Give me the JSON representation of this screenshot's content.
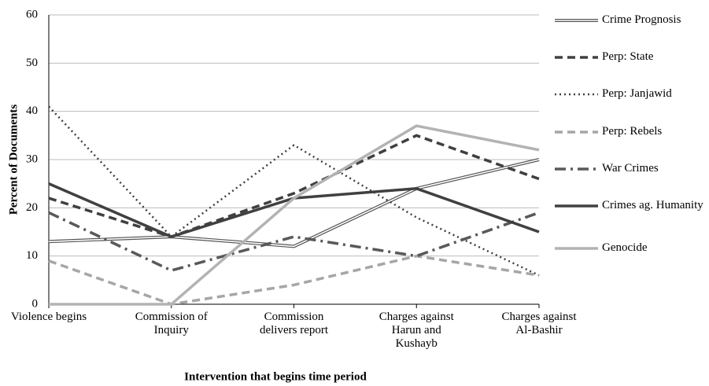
{
  "chart_data": {
    "type": "line",
    "y_label": "Percent of Documents",
    "x_label": "Intervention that begins time period",
    "categories": [
      "Violence begins",
      "Commission of Inquiry",
      "Commission delivers report",
      "Charges against Harun and Kushayb",
      "Charges against Al-Bashir"
    ],
    "ylim": [
      0,
      60
    ],
    "yticks": [
      0,
      10,
      20,
      30,
      40,
      50,
      60
    ],
    "grid": true,
    "legend": "right",
    "series": [
      {
        "name": "Crime Prognosis",
        "color": "#555555",
        "line_style": "double",
        "values": [
          13,
          14,
          12,
          24,
          30
        ]
      },
      {
        "name": "Perp: State",
        "color": "#404040",
        "line_style": "dashed",
        "values": [
          22,
          14,
          23,
          35,
          26
        ]
      },
      {
        "name": "Perp: Janjawid",
        "color": "#404040",
        "line_style": "dotted",
        "values": [
          41,
          14,
          33,
          18,
          6
        ]
      },
      {
        "name": "Perp: Rebels",
        "color": "#a6a6a6",
        "line_style": "dashed",
        "values": [
          9,
          0,
          4,
          10,
          6
        ]
      },
      {
        "name": "War Crimes",
        "color": "#595959",
        "line_style": "dashdot",
        "values": [
          19,
          7,
          14,
          10,
          19
        ]
      },
      {
        "name": "Crimes ag. Humanity",
        "color": "#404040",
        "line_style": "solid",
        "values": [
          25,
          14,
          22,
          24,
          15
        ]
      },
      {
        "name": "Genocide",
        "color": "#b3b3b3",
        "line_style": "solid",
        "values": [
          0,
          0,
          22,
          37,
          32
        ]
      }
    ]
  }
}
